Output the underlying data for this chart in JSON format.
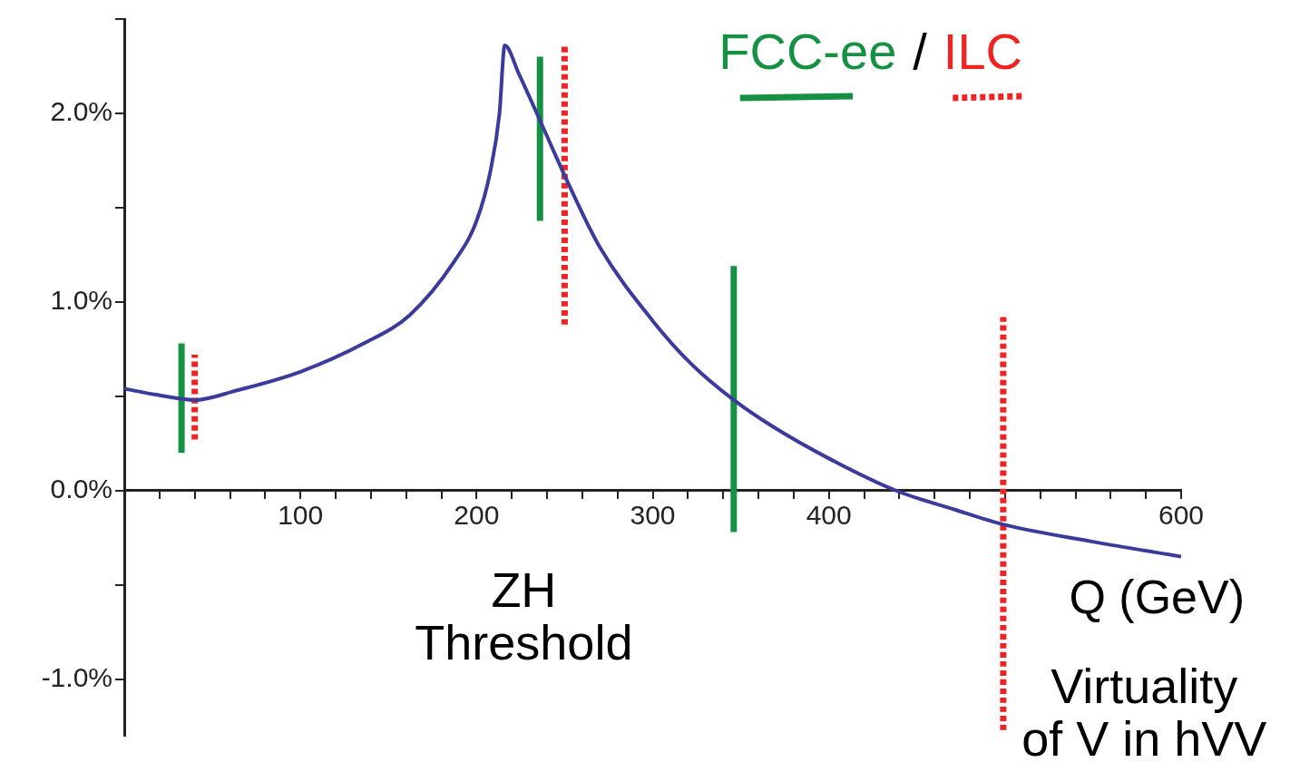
{
  "chart_data": {
    "type": "line",
    "xlabel": "Q (GeV)",
    "xlim": [
      0,
      600
    ],
    "ylim": [
      -1.3,
      2.5
    ],
    "xticks": [
      {
        "value": 20,
        "label": null
      },
      {
        "value": 40,
        "label": null
      },
      {
        "value": 60,
        "label": null
      },
      {
        "value": 80,
        "label": null
      },
      100,
      {
        "value": 120,
        "label": null
      },
      {
        "value": 140,
        "label": null
      },
      {
        "value": 160,
        "label": null
      },
      {
        "value": 180,
        "label": null
      },
      200,
      {
        "value": 220,
        "label": null
      },
      {
        "value": 240,
        "label": null
      },
      {
        "value": 260,
        "label": null
      },
      {
        "value": 280,
        "label": null
      },
      300,
      {
        "value": 320,
        "label": null
      },
      {
        "value": 340,
        "label": null
      },
      {
        "value": 360,
        "label": null
      },
      {
        "value": 380,
        "label": null
      },
      400,
      {
        "value": 420,
        "label": null
      },
      {
        "value": 440,
        "label": null
      },
      {
        "value": 460,
        "label": null
      },
      {
        "value": 480,
        "label": null
      },
      {
        "value": 500,
        "label": null
      },
      {
        "value": 520,
        "label": null
      },
      {
        "value": 540,
        "label": null
      },
      {
        "value": 560,
        "label": null
      },
      {
        "value": 580,
        "label": null
      },
      600
    ],
    "yticks": [
      {
        "value": -1.0,
        "label": "-1.0%"
      },
      {
        "value": -0.5,
        "label": null
      },
      {
        "value": 0,
        "label": "0.0%"
      },
      {
        "value": 0.5,
        "label": null
      },
      {
        "value": 1.0,
        "label": "1.0%"
      },
      {
        "value": 1.5,
        "label": null
      },
      {
        "value": 2.0,
        "label": "2.0%"
      },
      {
        "value": 2.5,
        "label": null
      }
    ],
    "grid": false,
    "legend": "top right",
    "marker": "none",
    "annotations": [
      "/",
      "ZH\nThreshold",
      "Virtuality\nof V in hVV"
    ],
    "series": [
      {
        "color": "#3b3b9b",
        "line_style": "solid",
        "x": [
          0,
          17,
          40,
          63.5,
          100,
          136,
          162,
          187,
          200,
          208,
          213,
          216,
          224,
          239,
          252,
          270,
          300,
          322,
          346,
          368,
          400,
          438,
          471,
          499,
          549,
          600
        ],
        "values": [
          0.54,
          0.51,
          0.48,
          0.53,
          0.63,
          0.78,
          0.93,
          1.21,
          1.43,
          1.7,
          2.0,
          2.36,
          2.21,
          1.9,
          1.63,
          1.29,
          0.9,
          0.67,
          0.48,
          0.34,
          0.17,
          0,
          -0.1,
          -0.18,
          -0.27,
          -0.35
        ]
      },
      {
        "name": "FCC-ee",
        "color": "#169043",
        "line_style": "solid",
        "x": [
          32.5,
          32.5
        ],
        "values": [
          0.2,
          0.78
        ]
      },
      {
        "color": "#169043",
        "line_style": "solid",
        "x": [
          236,
          236
        ],
        "values": [
          1.43,
          2.3
        ]
      },
      {
        "color": "#169043",
        "line_style": "solid",
        "x": [
          346,
          346
        ],
        "values": [
          -0.22,
          1.19
        ]
      },
      {
        "name": "ILC",
        "color": "#ee2424",
        "line_style": "dashed",
        "x": [
          40,
          40
        ],
        "values": [
          0.27,
          0.72
        ]
      },
      {
        "color": "#ee2424",
        "line_style": "dashed",
        "x": [
          250,
          250
        ],
        "values": [
          0.88,
          2.36
        ]
      },
      {
        "color": "#ee2424",
        "line_style": "dashed",
        "x": [
          499,
          499
        ],
        "values": [
          -1.27,
          0.92
        ]
      }
    ]
  }
}
